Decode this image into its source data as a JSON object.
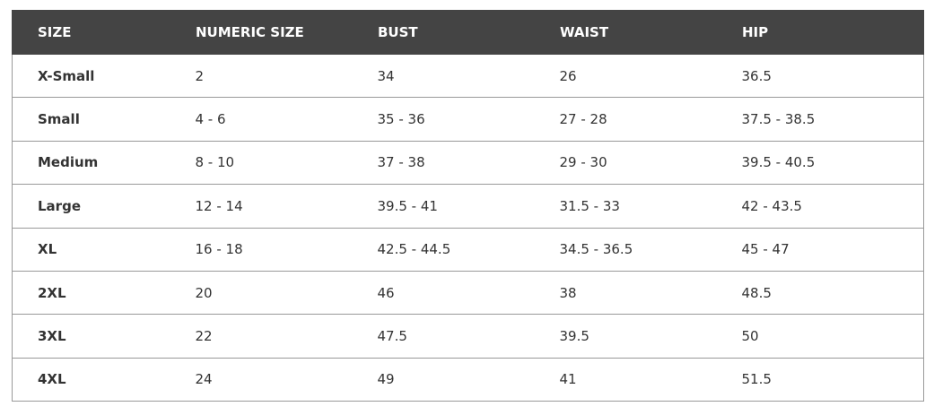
{
  "headers": [
    "SIZE",
    "NUMERIC SIZE",
    "BUST",
    "WAIST",
    "HIP"
  ],
  "rows": [
    [
      "X-Small",
      "2",
      "34",
      "26",
      "36.5"
    ],
    [
      "Small",
      "4 - 6",
      "35 - 36",
      "27 - 28",
      "37.5 - 38.5"
    ],
    [
      "Medium",
      "8 - 10",
      "37 - 38",
      "29 - 30",
      "39.5 - 40.5"
    ],
    [
      "Large",
      "12 - 14",
      "39.5 - 41",
      "31.5 - 33",
      "42 - 43.5"
    ],
    [
      "XL",
      "16 - 18",
      "42.5 - 44.5",
      "34.5 - 36.5",
      "45 - 47"
    ],
    [
      "2XL",
      "20",
      "46",
      "38",
      "48.5"
    ],
    [
      "3XL",
      "22",
      "47.5",
      "39.5",
      "50"
    ],
    [
      "4XL",
      "24",
      "49",
      "41",
      "51.5"
    ]
  ]
}
